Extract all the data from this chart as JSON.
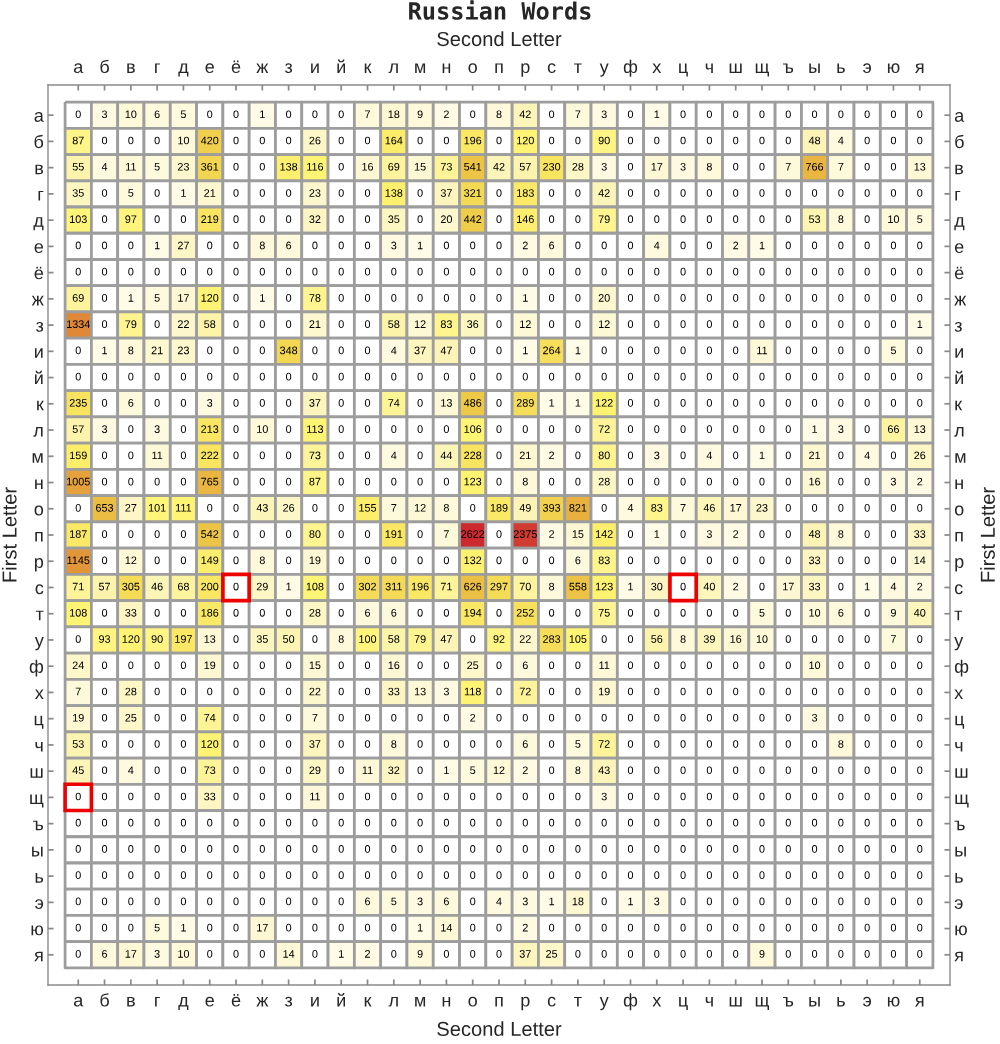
{
  "chart_data": {
    "type": "heatmap",
    "title": "Russian Words",
    "xlabel": "Second Letter",
    "x2label": "Second Letter",
    "ylabel": "First Letter",
    "y2label": "First Letter",
    "data_labels": true,
    "categories": [
      "а",
      "б",
      "в",
      "г",
      "д",
      "е",
      "ё",
      "ж",
      "з",
      "и",
      "й",
      "к",
      "л",
      "м",
      "н",
      "о",
      "п",
      "р",
      "с",
      "т",
      "у",
      "ф",
      "х",
      "ц",
      "ч",
      "ш",
      "щ",
      "ъ",
      "ы",
      "ь",
      "э",
      "ю",
      "я"
    ],
    "y_categories": [
      "а",
      "б",
      "в",
      "г",
      "д",
      "е",
      "ё",
      "ж",
      "з",
      "и",
      "й",
      "к",
      "л",
      "м",
      "н",
      "о",
      "п",
      "р",
      "с",
      "т",
      "у",
      "ф",
      "х",
      "ц",
      "ч",
      "ш",
      "щ",
      "ъ",
      "ы",
      "ь",
      "э",
      "ю",
      "я"
    ],
    "y2_categories": [
      "а",
      "б",
      "в",
      "г",
      "д",
      "е",
      "ё",
      "ж",
      "з",
      "и",
      "й",
      "к",
      "л",
      "м",
      "н",
      "о",
      "п",
      "р",
      "с",
      "т",
      "у",
      "ф",
      "х",
      "ц",
      "ч",
      "ш",
      "щ",
      "ъ",
      "ы",
      "ь",
      "э",
      "ю",
      "я"
    ],
    "cells": [
      [
        0,
        3,
        10,
        6,
        5,
        0,
        0,
        1,
        0,
        0,
        0,
        7,
        18,
        9,
        2,
        0,
        8,
        42,
        0,
        7,
        3,
        0,
        1,
        0,
        0,
        0,
        0,
        0,
        0,
        0,
        0,
        0,
        0
      ],
      [
        87,
        0,
        0,
        0,
        10,
        420,
        0,
        0,
        0,
        26,
        0,
        0,
        164,
        0,
        0,
        196,
        0,
        120,
        0,
        0,
        90,
        0,
        0,
        0,
        0,
        0,
        0,
        0,
        48,
        4,
        0,
        0,
        0
      ],
      [
        55,
        4,
        11,
        5,
        23,
        361,
        0,
        0,
        138,
        116,
        0,
        16,
        69,
        15,
        73,
        541,
        42,
        57,
        230,
        28,
        3,
        0,
        17,
        3,
        8,
        0,
        0,
        7,
        766,
        7,
        0,
        0,
        13
      ],
      [
        35,
        0,
        5,
        0,
        1,
        21,
        0,
        0,
        0,
        23,
        0,
        0,
        138,
        0,
        37,
        321,
        0,
        183,
        0,
        0,
        42,
        0,
        0,
        0,
        0,
        0,
        0,
        0,
        0,
        0,
        0,
        0,
        0
      ],
      [
        103,
        0,
        97,
        0,
        0,
        219,
        0,
        0,
        0,
        32,
        0,
        0,
        35,
        0,
        20,
        442,
        0,
        146,
        0,
        0,
        79,
        0,
        0,
        0,
        0,
        0,
        0,
        0,
        53,
        8,
        0,
        10,
        5
      ],
      [
        0,
        0,
        0,
        1,
        27,
        0,
        0,
        8,
        6,
        0,
        0,
        0,
        3,
        1,
        0,
        0,
        0,
        2,
        6,
        0,
        0,
        0,
        4,
        0,
        0,
        2,
        1,
        0,
        0,
        0,
        0,
        0,
        0
      ],
      [
        0,
        0,
        0,
        0,
        0,
        0,
        0,
        0,
        0,
        0,
        0,
        0,
        0,
        0,
        0,
        0,
        0,
        0,
        0,
        0,
        0,
        0,
        0,
        0,
        0,
        0,
        0,
        0,
        0,
        0,
        0,
        0,
        0
      ],
      [
        69,
        0,
        1,
        5,
        17,
        120,
        0,
        1,
        0,
        78,
        0,
        0,
        0,
        0,
        0,
        0,
        0,
        1,
        0,
        0,
        20,
        0,
        0,
        0,
        0,
        0,
        0,
        0,
        0,
        0,
        0,
        0,
        0
      ],
      [
        1334,
        0,
        79,
        0,
        22,
        58,
        0,
        0,
        0,
        21,
        0,
        0,
        58,
        12,
        83,
        36,
        0,
        12,
        0,
        0,
        12,
        0,
        0,
        0,
        0,
        0,
        0,
        0,
        0,
        0,
        0,
        0,
        1
      ],
      [
        0,
        1,
        8,
        21,
        23,
        0,
        0,
        0,
        348,
        0,
        0,
        0,
        4,
        37,
        47,
        0,
        0,
        1,
        264,
        1,
        0,
        0,
        0,
        0,
        0,
        0,
        11,
        0,
        0,
        0,
        0,
        5,
        0
      ],
      [
        0,
        0,
        0,
        0,
        0,
        0,
        0,
        0,
        0,
        0,
        0,
        0,
        0,
        0,
        0,
        0,
        0,
        0,
        0,
        0,
        0,
        0,
        0,
        0,
        0,
        0,
        0,
        0,
        0,
        0,
        0,
        0,
        0
      ],
      [
        235,
        0,
        6,
        0,
        0,
        3,
        0,
        0,
        0,
        37,
        0,
        0,
        74,
        0,
        13,
        486,
        0,
        289,
        1,
        1,
        122,
        0,
        0,
        0,
        0,
        0,
        0,
        0,
        0,
        0,
        0,
        0,
        0
      ],
      [
        57,
        3,
        0,
        3,
        0,
        213,
        0,
        10,
        0,
        113,
        0,
        0,
        0,
        0,
        0,
        106,
        0,
        0,
        0,
        0,
        72,
        0,
        0,
        0,
        0,
        0,
        0,
        0,
        1,
        3,
        0,
        66,
        13
      ],
      [
        159,
        0,
        0,
        11,
        0,
        222,
        0,
        0,
        0,
        73,
        0,
        0,
        4,
        0,
        44,
        228,
        0,
        21,
        2,
        0,
        80,
        0,
        3,
        0,
        4,
        0,
        1,
        0,
        21,
        0,
        4,
        0,
        26
      ],
      [
        1005,
        0,
        0,
        0,
        0,
        765,
        0,
        0,
        0,
        87,
        0,
        0,
        0,
        0,
        0,
        123,
        0,
        8,
        0,
        0,
        28,
        0,
        0,
        0,
        0,
        0,
        0,
        0,
        16,
        0,
        0,
        3,
        2
      ],
      [
        0,
        653,
        27,
        101,
        111,
        0,
        0,
        43,
        26,
        0,
        0,
        155,
        7,
        12,
        8,
        0,
        189,
        49,
        393,
        821,
        0,
        4,
        83,
        7,
        46,
        17,
        23,
        0,
        0,
        0,
        0,
        0,
        0
      ],
      [
        187,
        0,
        0,
        0,
        0,
        542,
        0,
        0,
        0,
        80,
        0,
        0,
        191,
        0,
        7,
        2622,
        0,
        2375,
        2,
        15,
        142,
        0,
        1,
        0,
        3,
        2,
        0,
        0,
        48,
        8,
        0,
        0,
        33
      ],
      [
        1145,
        0,
        12,
        0,
        0,
        149,
        0,
        8,
        0,
        19,
        0,
        0,
        0,
        0,
        0,
        132,
        0,
        0,
        0,
        6,
        83,
        0,
        0,
        0,
        0,
        0,
        0,
        0,
        33,
        0,
        0,
        0,
        14
      ],
      [
        71,
        57,
        305,
        46,
        68,
        200,
        0,
        29,
        1,
        108,
        0,
        302,
        311,
        196,
        71,
        626,
        297,
        70,
        8,
        558,
        123,
        1,
        30,
        0,
        40,
        2,
        0,
        17,
        33,
        0,
        1,
        4,
        2
      ],
      [
        108,
        0,
        33,
        0,
        0,
        186,
        0,
        0,
        0,
        28,
        0,
        6,
        6,
        0,
        0,
        194,
        0,
        252,
        0,
        0,
        75,
        0,
        0,
        0,
        0,
        0,
        5,
        0,
        10,
        6,
        0,
        9,
        40
      ],
      [
        0,
        93,
        120,
        90,
        197,
        13,
        0,
        35,
        50,
        0,
        8,
        100,
        58,
        79,
        47,
        0,
        92,
        22,
        283,
        105,
        0,
        0,
        56,
        8,
        39,
        16,
        10,
        0,
        0,
        0,
        0,
        7,
        0
      ],
      [
        24,
        0,
        0,
        0,
        0,
        19,
        0,
        0,
        0,
        15,
        0,
        0,
        16,
        0,
        0,
        25,
        0,
        6,
        0,
        0,
        11,
        0,
        0,
        0,
        0,
        0,
        0,
        0,
        10,
        0,
        0,
        0,
        0
      ],
      [
        7,
        0,
        28,
        0,
        0,
        0,
        0,
        0,
        0,
        22,
        0,
        0,
        33,
        13,
        3,
        118,
        0,
        72,
        0,
        0,
        19,
        0,
        0,
        0,
        0,
        0,
        0,
        0,
        0,
        0,
        0,
        0,
        0
      ],
      [
        19,
        0,
        25,
        0,
        0,
        74,
        0,
        0,
        0,
        7,
        0,
        0,
        0,
        0,
        0,
        2,
        0,
        0,
        0,
        0,
        0,
        0,
        0,
        0,
        0,
        0,
        0,
        0,
        3,
        0,
        0,
        0,
        0
      ],
      [
        53,
        0,
        0,
        0,
        0,
        120,
        0,
        0,
        0,
        37,
        0,
        0,
        8,
        0,
        0,
        0,
        0,
        6,
        0,
        5,
        72,
        0,
        0,
        0,
        0,
        0,
        0,
        0,
        0,
        8,
        0,
        0,
        0
      ],
      [
        45,
        0,
        4,
        0,
        0,
        73,
        0,
        0,
        0,
        29,
        0,
        11,
        32,
        0,
        1,
        5,
        12,
        2,
        0,
        8,
        43,
        0,
        0,
        0,
        0,
        0,
        0,
        0,
        0,
        0,
        0,
        0,
        0
      ],
      [
        0,
        0,
        0,
        0,
        0,
        33,
        0,
        0,
        0,
        11,
        0,
        0,
        0,
        0,
        0,
        0,
        0,
        0,
        0,
        0,
        3,
        0,
        0,
        0,
        0,
        0,
        0,
        0,
        0,
        0,
        0,
        0,
        0
      ],
      [
        0,
        0,
        0,
        0,
        0,
        0,
        0,
        0,
        0,
        0,
        0,
        0,
        0,
        0,
        0,
        0,
        0,
        0,
        0,
        0,
        0,
        0,
        0,
        0,
        0,
        0,
        0,
        0,
        0,
        0,
        0,
        0,
        0
      ],
      [
        0,
        0,
        0,
        0,
        0,
        0,
        0,
        0,
        0,
        0,
        0,
        0,
        0,
        0,
        0,
        0,
        0,
        0,
        0,
        0,
        0,
        0,
        0,
        0,
        0,
        0,
        0,
        0,
        0,
        0,
        0,
        0,
        0
      ],
      [
        0,
        0,
        0,
        0,
        0,
        0,
        0,
        0,
        0,
        0,
        0,
        0,
        0,
        0,
        0,
        0,
        0,
        0,
        0,
        0,
        0,
        0,
        0,
        0,
        0,
        0,
        0,
        0,
        0,
        0,
        0,
        0,
        0
      ],
      [
        0,
        0,
        0,
        0,
        0,
        0,
        0,
        0,
        0,
        0,
        0,
        6,
        5,
        3,
        6,
        0,
        4,
        3,
        1,
        18,
        0,
        1,
        3,
        0,
        0,
        0,
        0,
        0,
        0,
        0,
        0,
        0,
        0
      ],
      [
        0,
        0,
        0,
        5,
        1,
        0,
        0,
        17,
        0,
        0,
        0,
        0,
        0,
        1,
        14,
        0,
        0,
        2,
        0,
        0,
        0,
        0,
        0,
        0,
        0,
        0,
        0,
        0,
        0,
        0,
        0,
        0,
        0
      ],
      [
        0,
        6,
        17,
        3,
        10,
        0,
        0,
        0,
        14,
        0,
        1,
        2,
        0,
        9,
        0,
        0,
        0,
        37,
        25,
        0,
        0,
        0,
        0,
        0,
        0,
        0,
        9,
        0,
        0,
        0,
        0,
        0,
        0
      ]
    ],
    "annotations": [
      {
        "x": "ё",
        "y": "с"
      },
      {
        "x": "ц",
        "y": "с"
      },
      {
        "x": "а",
        "y": "щ"
      }
    ]
  }
}
